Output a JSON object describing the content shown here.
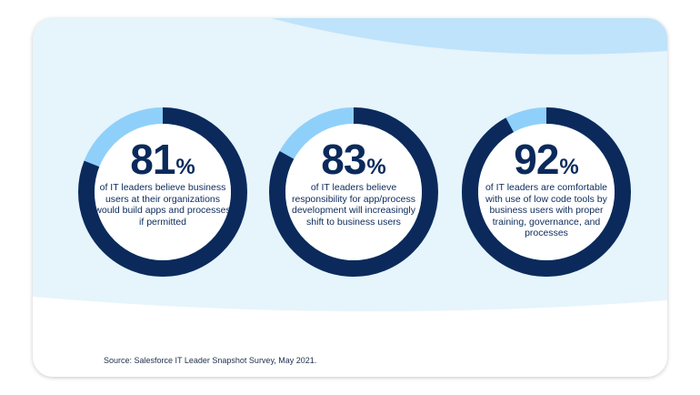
{
  "colors": {
    "ring": "#0b2a5b",
    "accent": "#8fd0fa",
    "card_bg": "#e6f4fc",
    "wave": "#bfe3fb",
    "text": "#0b2a5b"
  },
  "chart_data": {
    "type": "pie",
    "charts": [
      {
        "value": 81,
        "number": "81",
        "unit": "%",
        "description": "of IT leaders believe business users at their organizations would build apps and processes if permitted"
      },
      {
        "value": 83,
        "number": "83",
        "unit": "%",
        "description": "of IT leaders believe responsibility for app/process development will increasingly shift to business users"
      },
      {
        "value": 92,
        "number": "92",
        "unit": "%",
        "description": "of IT leaders are comfortable with use of low code tools by business users with proper training, governance, and processes"
      }
    ]
  },
  "source": "Source: Salesforce IT Leader Snapshot Survey, May 2021."
}
